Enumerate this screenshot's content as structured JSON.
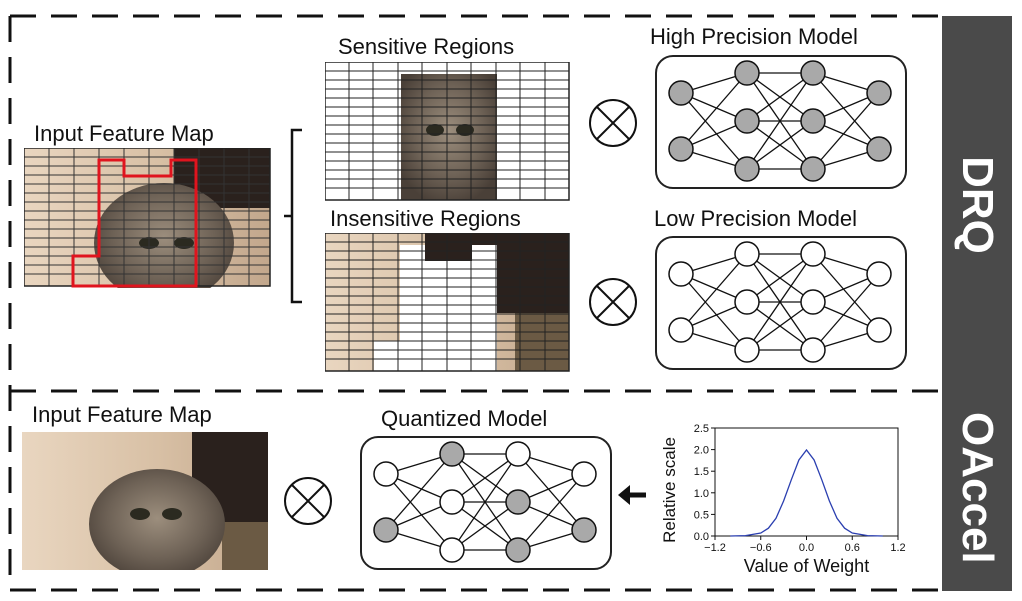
{
  "drq": {
    "label": "DRQ",
    "input_map_title": "Input Feature Map",
    "sensitive_title": "Sensitive Regions",
    "insensitive_title": "Insensitive Regions",
    "high_model_title": "High Precision Model",
    "low_model_title": "Low Precision Model"
  },
  "oaccel": {
    "label": "OAccel",
    "input_map_title": "Input Feature Map",
    "quantized_title": "Quantized Model"
  },
  "chart_data": {
    "type": "line",
    "title": "",
    "xlabel": "Value of Weight",
    "ylabel": "Relative scale",
    "xlim": [
      -1.2,
      1.2
    ],
    "ylim": [
      0,
      2.5
    ],
    "xticks": [
      "−1.2",
      "−0.6",
      "0.0",
      "0.6",
      "1.2"
    ],
    "yticks": [
      "0.0",
      "0.5",
      "1.0",
      "1.5",
      "2.0",
      "2.5"
    ],
    "series": [
      {
        "color": "#2b3fb0",
        "x": [
          -1.0,
          -0.8,
          -0.6,
          -0.5,
          -0.4,
          -0.3,
          -0.2,
          -0.1,
          0.0,
          0.1,
          0.2,
          0.3,
          0.4,
          0.5,
          0.6,
          0.8,
          1.0
        ],
        "y": [
          0.0,
          0.01,
          0.07,
          0.18,
          0.41,
          0.81,
          1.3,
          1.76,
          1.99,
          1.76,
          1.3,
          0.81,
          0.41,
          0.18,
          0.07,
          0.01,
          0.0
        ]
      }
    ]
  },
  "colors": {
    "sidebar": "#4a4a4a",
    "sensitive_outline": "#e0141e",
    "filled_node": "#a9a9a9",
    "curve": "#2b3fb0"
  }
}
